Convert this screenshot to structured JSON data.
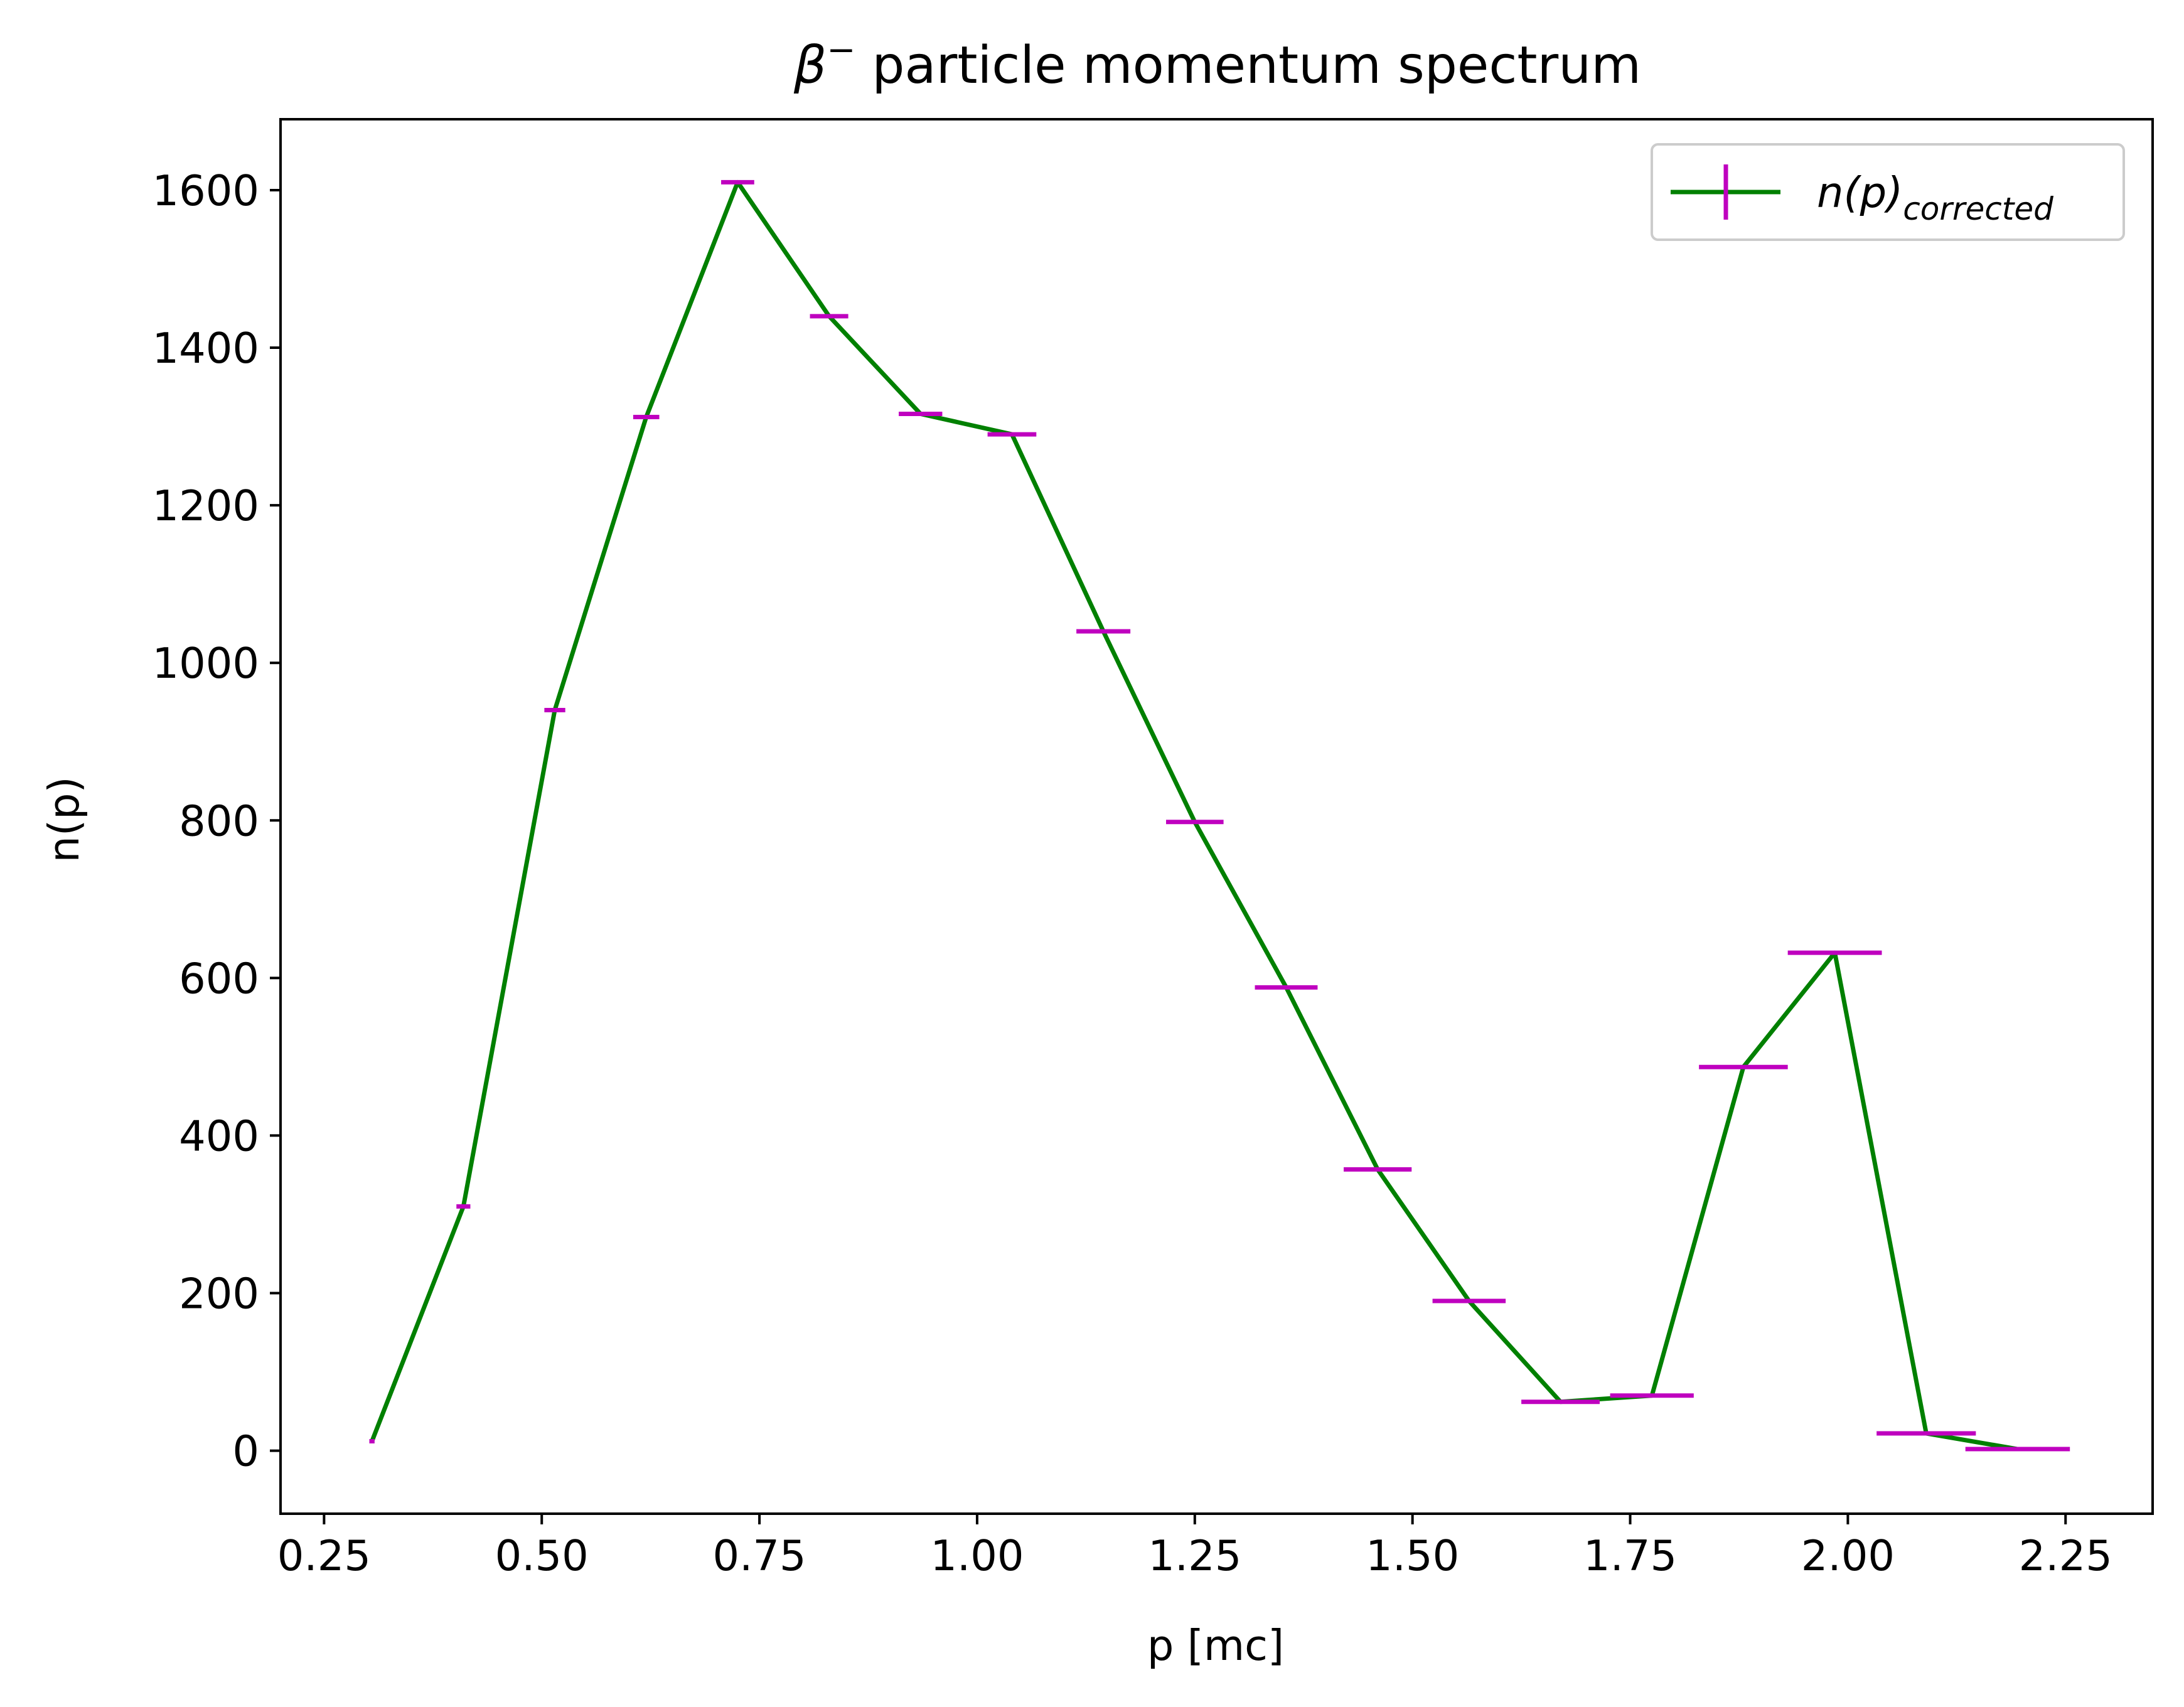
{
  "chart_data": {
    "type": "line",
    "title_prefix": "β",
    "title_superscript": "−",
    "title_rest": " particle momentum spectrum",
    "xlabel": "p [mc]",
    "ylabel": "n(p)",
    "xlim": [
      0.2,
      2.35
    ],
    "ylim": [
      -80,
      1690
    ],
    "x_ticks": [
      0.25,
      0.5,
      0.75,
      1.0,
      1.25,
      1.5,
      1.75,
      2.0,
      2.25
    ],
    "x_tick_labels": [
      "0.25",
      "0.50",
      "0.75",
      "1.00",
      "1.25",
      "1.50",
      "1.75",
      "2.00",
      "2.25"
    ],
    "y_ticks": [
      0,
      200,
      400,
      600,
      800,
      1000,
      1200,
      1400,
      1600
    ],
    "y_tick_labels": [
      "0",
      "200",
      "400",
      "600",
      "800",
      "1000",
      "1200",
      "1400",
      "1600"
    ],
    "grid": false,
    "legend_position": "top-right",
    "series": [
      {
        "name_base": "n(p)",
        "name_subscript": "corrected",
        "line_color": "#008000",
        "error_color": "#bf00bf",
        "points": [
          {
            "x": 0.305,
            "y": 12,
            "xerr": 0.003
          },
          {
            "x": 0.41,
            "y": 310,
            "xerr": 0.008
          },
          {
            "x": 0.515,
            "y": 940,
            "xerr": 0.012
          },
          {
            "x": 0.62,
            "y": 1312,
            "xerr": 0.015
          },
          {
            "x": 0.725,
            "y": 1610,
            "xerr": 0.019
          },
          {
            "x": 0.83,
            "y": 1440,
            "xerr": 0.022
          },
          {
            "x": 0.935,
            "y": 1316,
            "xerr": 0.025
          },
          {
            "x": 1.04,
            "y": 1290,
            "xerr": 0.028
          },
          {
            "x": 1.145,
            "y": 1040,
            "xerr": 0.031
          },
          {
            "x": 1.25,
            "y": 798,
            "xerr": 0.033
          },
          {
            "x": 1.355,
            "y": 588,
            "xerr": 0.036
          },
          {
            "x": 1.46,
            "y": 357,
            "xerr": 0.039
          },
          {
            "x": 1.565,
            "y": 190,
            "xerr": 0.042
          },
          {
            "x": 1.67,
            "y": 62,
            "xerr": 0.045
          },
          {
            "x": 1.775,
            "y": 70,
            "xerr": 0.048
          },
          {
            "x": 1.88,
            "y": 487,
            "xerr": 0.051
          },
          {
            "x": 1.985,
            "y": 632,
            "xerr": 0.054
          },
          {
            "x": 2.09,
            "y": 22,
            "xerr": 0.057
          },
          {
            "x": 2.195,
            "y": 2,
            "xerr": 0.06
          }
        ]
      }
    ]
  }
}
